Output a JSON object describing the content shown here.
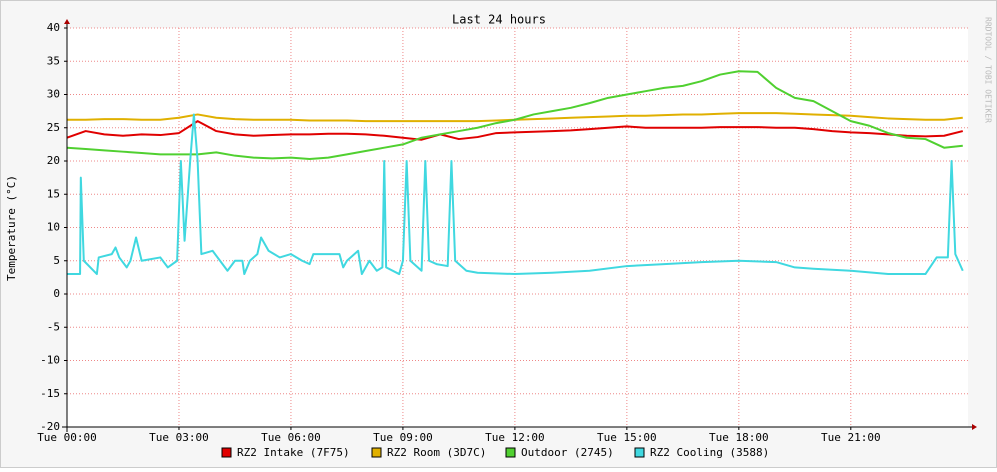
{
  "chart_data": {
    "type": "line",
    "title": "Last 24 hours",
    "y_label": "Temperature (°C)",
    "watermark": "RRDTOOL / TOBI OETIKER",
    "x": [
      0,
      0.5,
      1,
      1.5,
      2,
      2.5,
      3,
      3.5,
      4,
      4.5,
      5,
      5.5,
      6,
      6.5,
      7,
      7.5,
      8,
      8.5,
      9,
      9.5,
      10,
      10.5,
      11,
      11.5,
      12,
      12.5,
      13,
      13.5,
      14,
      14.5,
      15,
      15.5,
      16,
      16.5,
      17,
      17.5,
      18,
      18.5,
      19,
      19.5,
      20,
      20.5,
      21,
      21.5,
      22,
      22.5,
      23,
      23.5,
      24
    ],
    "xlim": [
      0,
      24.14
    ],
    "xticks": [
      {
        "value": 0,
        "label": "Tue 00:00"
      },
      {
        "value": 3,
        "label": "Tue 03:00"
      },
      {
        "value": 6,
        "label": "Tue 06:00"
      },
      {
        "value": 9,
        "label": "Tue 09:00"
      },
      {
        "value": 12,
        "label": "Tue 12:00"
      },
      {
        "value": 15,
        "label": "Tue 15:00"
      },
      {
        "value": 18,
        "label": "Tue 18:00"
      },
      {
        "value": 21,
        "label": "Tue 21:00"
      }
    ],
    "ylim": [
      -20,
      40
    ],
    "yticks": [
      -20,
      -15,
      -10,
      -5,
      0,
      5,
      10,
      15,
      20,
      25,
      30,
      35,
      40
    ],
    "grid": true,
    "series": [
      {
        "name": "RZ2 Intake (7F75)",
        "color": "#e00000",
        "values": [
          23.5,
          24.5,
          24,
          23.8,
          24,
          23.9,
          24.2,
          26,
          24.5,
          24,
          23.8,
          23.9,
          24,
          24,
          24.1,
          24.1,
          24,
          23.8,
          23.5,
          23.2,
          24,
          23.3,
          23.6,
          24.2,
          24.3,
          24.4,
          24.5,
          24.6,
          24.8,
          25,
          25.2,
          25,
          25,
          25,
          25,
          25.1,
          25.1,
          25.1,
          25,
          25,
          24.8,
          24.5,
          24.3,
          24.2,
          24,
          23.8,
          23.7,
          23.8,
          24.5
        ]
      },
      {
        "name": "RZ2 Room (3D7C)",
        "color": "#e0b000",
        "values": [
          26.2,
          26.2,
          26.3,
          26.3,
          26.2,
          26.2,
          26.5,
          27,
          26.5,
          26.3,
          26.2,
          26.2,
          26.2,
          26.1,
          26.1,
          26.1,
          26,
          26,
          26,
          26,
          26,
          26,
          26,
          26.1,
          26.2,
          26.3,
          26.4,
          26.5,
          26.6,
          26.7,
          26.8,
          26.8,
          26.9,
          27,
          27,
          27.1,
          27.2,
          27.2,
          27.2,
          27.1,
          27,
          26.9,
          26.8,
          26.6,
          26.4,
          26.3,
          26.2,
          26.2,
          26.5
        ]
      },
      {
        "name": "Outdoor (2745)",
        "color": "#50d030",
        "values": [
          22,
          21.8,
          21.6,
          21.4,
          21.2,
          21,
          21,
          21,
          21.3,
          20.8,
          20.5,
          20.4,
          20.5,
          20.3,
          20.5,
          21,
          21.5,
          22,
          22.5,
          23.5,
          24,
          24.5,
          25,
          25.7,
          26.2,
          27,
          27.5,
          28,
          28.7,
          29.5,
          30,
          30.5,
          31,
          31.3,
          32,
          33,
          33.5,
          33.4,
          31,
          29.5,
          29,
          27.5,
          26,
          25.3,
          24.2,
          23.5,
          23.3,
          22,
          22.3
        ]
      },
      {
        "name": "RZ2 Cooling (3588)",
        "color": "#40d8e0",
        "x": [
          0,
          0.35,
          0.37,
          0.45,
          0.8,
          0.85,
          1.2,
          1.3,
          1.4,
          1.6,
          1.7,
          1.85,
          2,
          2.5,
          2.7,
          2.95,
          3.05,
          3.15,
          3.3,
          3.4,
          3.5,
          3.6,
          3.9,
          4.1,
          4.3,
          4.5,
          4.7,
          4.75,
          4.9,
          5.1,
          5.2,
          5.4,
          5.7,
          6,
          6.3,
          6.5,
          6.6,
          7,
          7.3,
          7.4,
          7.5,
          7.8,
          7.9,
          8.1,
          8.3,
          8.45,
          8.5,
          8.55,
          8.9,
          9,
          9.1,
          9.2,
          9.5,
          9.6,
          9.7,
          9.9,
          10.2,
          10.3,
          10.4,
          10.7,
          11,
          12,
          13,
          14,
          15,
          16,
          17,
          18,
          19,
          19.5,
          20,
          21,
          22,
          23,
          23.3,
          23.6,
          23.7,
          23.8,
          24
        ],
        "values": [
          3,
          3,
          17.5,
          5,
          3,
          5.5,
          6,
          7,
          5.5,
          4,
          5,
          8.5,
          5,
          5.5,
          4,
          5,
          20,
          8,
          20,
          27,
          20,
          6,
          6.5,
          5,
          3.5,
          5,
          5,
          3,
          5,
          6,
          8.5,
          6.5,
          5.5,
          6,
          5,
          4.5,
          6,
          6,
          6,
          4,
          5,
          6.5,
          3,
          5,
          3.5,
          4,
          20,
          4,
          3,
          5,
          20,
          5,
          3.5,
          20,
          5,
          4.5,
          4.2,
          20,
          5,
          3.5,
          3.2,
          3,
          3.2,
          3.5,
          4.2,
          4.5,
          4.8,
          5,
          4.8,
          4,
          3.8,
          3.5,
          3,
          3,
          5.5,
          5.5,
          20,
          6,
          3.5
        ]
      }
    ]
  }
}
